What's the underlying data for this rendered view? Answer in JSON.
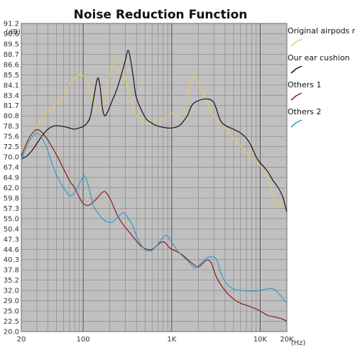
{
  "chart_data": {
    "type": "line",
    "title": "Noise Reduction Function",
    "xlabel": "",
    "ylabel": "",
    "y_unit": "(dB)",
    "x_unit": "(Hz)",
    "x_scale": "log",
    "xlim": [
      20,
      20000
    ],
    "ylim": [
      20.0,
      91.2
    ],
    "x_ticks": [
      {
        "value": 20,
        "label": "20"
      },
      {
        "value": 100,
        "label": "100"
      },
      {
        "value": 1000,
        "label": "1K"
      },
      {
        "value": 10000,
        "label": "10K"
      },
      {
        "value": 20000,
        "label": "20K"
      }
    ],
    "y_ticks": [
      "20.0",
      "22.5",
      "25.0",
      "29.0",
      "32.0",
      "35.2",
      "37.8",
      "40.3",
      "44.6",
      "47.3",
      "50.4",
      "55.0",
      "57.3",
      "59.8",
      "62.0",
      "64.9",
      "67.4",
      "70.0",
      "72.5",
      "75.6",
      "78.3",
      "80.8",
      "81.7",
      "83.4",
      "84.1",
      "85.5",
      "86.6",
      "88.7",
      "89.5",
      "90.6",
      "91.2"
    ],
    "grid": true,
    "plot_background": "#c0c0c0",
    "legend_placement": "right",
    "series": [
      {
        "name": "Original airpods max",
        "color": "#e8c95a",
        "points": [
          [
            20,
            71.5
          ],
          [
            22,
            73
          ],
          [
            25,
            75.2
          ],
          [
            30,
            78
          ],
          [
            35,
            80.5
          ],
          [
            40,
            81.2
          ],
          [
            50,
            82
          ],
          [
            60,
            83
          ],
          [
            70,
            84.2
          ],
          [
            80,
            85
          ],
          [
            90,
            85.5
          ],
          [
            100,
            85.4
          ],
          [
            110,
            84.8
          ],
          [
            130,
            82.5
          ],
          [
            150,
            81.5
          ],
          [
            170,
            82
          ],
          [
            200,
            85.5
          ],
          [
            230,
            88
          ],
          [
            260,
            87.2
          ],
          [
            300,
            85
          ],
          [
            350,
            82.5
          ],
          [
            400,
            80.8
          ],
          [
            450,
            79.8
          ],
          [
            500,
            79.2
          ],
          [
            550,
            78.9
          ],
          [
            600,
            79.2
          ],
          [
            700,
            79.8
          ],
          [
            800,
            80.2
          ],
          [
            900,
            80.5
          ],
          [
            1000,
            81
          ],
          [
            1100,
            80.8
          ],
          [
            1300,
            81
          ],
          [
            1500,
            82.5
          ],
          [
            1700,
            85.3
          ],
          [
            2000,
            84.5
          ],
          [
            2500,
            82.5
          ],
          [
            3000,
            80.5
          ],
          [
            4000,
            78
          ],
          [
            5000,
            75
          ],
          [
            7000,
            71
          ],
          [
            9000,
            68.5
          ],
          [
            11000,
            67
          ],
          [
            13000,
            63
          ],
          [
            15000,
            58.5
          ],
          [
            17000,
            57.8
          ],
          [
            18500,
            58.2
          ]
        ]
      },
      {
        "name": "Our ear cushion",
        "color": "#111111",
        "points": [
          [
            20,
            69.5
          ],
          [
            23,
            70.2
          ],
          [
            27,
            71.8
          ],
          [
            30,
            73.5
          ],
          [
            35,
            76
          ],
          [
            40,
            77.5
          ],
          [
            45,
            78.2
          ],
          [
            50,
            78.4
          ],
          [
            60,
            78.2
          ],
          [
            70,
            77.8
          ],
          [
            80,
            77.5
          ],
          [
            90,
            77.8
          ],
          [
            100,
            78.2
          ],
          [
            110,
            79
          ],
          [
            120,
            80.5
          ],
          [
            130,
            82.5
          ],
          [
            145,
            85
          ],
          [
            155,
            84
          ],
          [
            165,
            81.5
          ],
          [
            175,
            80.8
          ],
          [
            190,
            81.2
          ],
          [
            210,
            82.3
          ],
          [
            240,
            83.8
          ],
          [
            270,
            85.5
          ],
          [
            300,
            87.5
          ],
          [
            320,
            89
          ],
          [
            340,
            88
          ],
          [
            370,
            85
          ],
          [
            400,
            83
          ],
          [
            500,
            80.5
          ],
          [
            600,
            79
          ],
          [
            700,
            78.3
          ],
          [
            800,
            78
          ],
          [
            900,
            77.8
          ],
          [
            1000,
            77.8
          ],
          [
            1100,
            78
          ],
          [
            1200,
            78.3
          ],
          [
            1300,
            79
          ],
          [
            1500,
            80.8
          ],
          [
            1700,
            81.8
          ],
          [
            2000,
            82.5
          ],
          [
            2500,
            82.8
          ],
          [
            3000,
            82.2
          ],
          [
            3500,
            80
          ],
          [
            4000,
            78.5
          ],
          [
            5000,
            77.5
          ],
          [
            6000,
            76.5
          ],
          [
            7000,
            75
          ],
          [
            8000,
            72.5
          ],
          [
            9000,
            70
          ],
          [
            10000,
            68.5
          ],
          [
            12000,
            66.5
          ],
          [
            14000,
            64
          ],
          [
            16000,
            62
          ],
          [
            18000,
            60
          ],
          [
            20000,
            56.5
          ]
        ]
      },
      {
        "name": "Others 1",
        "color": "#8b1a1a",
        "points": [
          [
            20,
            70
          ],
          [
            22,
            72.5
          ],
          [
            25,
            75.5
          ],
          [
            28,
            77
          ],
          [
            30,
            77.4
          ],
          [
            33,
            77
          ],
          [
            36,
            76
          ],
          [
            40,
            74.5
          ],
          [
            50,
            70.5
          ],
          [
            60,
            67
          ],
          [
            70,
            64
          ],
          [
            80,
            62
          ],
          [
            90,
            60
          ],
          [
            100,
            58.5
          ],
          [
            110,
            58
          ],
          [
            120,
            58.2
          ],
          [
            140,
            59.5
          ],
          [
            160,
            60.8
          ],
          [
            175,
            61.2
          ],
          [
            190,
            60.5
          ],
          [
            210,
            58.8
          ],
          [
            240,
            56
          ],
          [
            280,
            52.5
          ],
          [
            330,
            49.5
          ],
          [
            400,
            46.8
          ],
          [
            450,
            45.5
          ],
          [
            500,
            44.8
          ],
          [
            550,
            44.5
          ],
          [
            600,
            44.6
          ],
          [
            700,
            45.8
          ],
          [
            750,
            46.4
          ],
          [
            800,
            46.6
          ],
          [
            850,
            46.3
          ],
          [
            950,
            45
          ],
          [
            1100,
            44
          ],
          [
            1300,
            42.5
          ],
          [
            1500,
            40.5
          ],
          [
            1800,
            39
          ],
          [
            2000,
            38.5
          ],
          [
            2200,
            39.2
          ],
          [
            2500,
            40.2
          ],
          [
            2800,
            39.5
          ],
          [
            3200,
            36
          ],
          [
            4000,
            32
          ],
          [
            5000,
            29.5
          ],
          [
            6000,
            28
          ],
          [
            8000,
            26.5
          ],
          [
            10000,
            25
          ],
          [
            12000,
            24
          ],
          [
            15000,
            23.5
          ],
          [
            18000,
            23
          ],
          [
            20000,
            22.5
          ]
        ]
      },
      {
        "name": "Others 2",
        "color": "#3399cc",
        "points": [
          [
            20,
            69
          ],
          [
            22,
            71.5
          ],
          [
            25,
            74.5
          ],
          [
            28,
            76
          ],
          [
            30,
            76.5
          ],
          [
            33,
            75.8
          ],
          [
            36,
            74
          ],
          [
            40,
            71.5
          ],
          [
            45,
            68
          ],
          [
            50,
            65.5
          ],
          [
            55,
            63.5
          ],
          [
            60,
            62
          ],
          [
            70,
            60.3
          ],
          [
            80,
            61
          ],
          [
            90,
            63
          ],
          [
            100,
            65
          ],
          [
            105,
            65.2
          ],
          [
            110,
            64
          ],
          [
            120,
            61
          ],
          [
            130,
            58
          ],
          [
            150,
            56
          ],
          [
            170,
            54.5
          ],
          [
            190,
            53.5
          ],
          [
            210,
            53.3
          ],
          [
            230,
            54.5
          ],
          [
            260,
            55.8
          ],
          [
            280,
            56.3
          ],
          [
            300,
            56
          ],
          [
            330,
            54.5
          ],
          [
            370,
            51
          ],
          [
            420,
            47
          ],
          [
            500,
            44.5
          ],
          [
            550,
            44
          ],
          [
            600,
            44.2
          ],
          [
            700,
            46
          ],
          [
            800,
            47.8
          ],
          [
            850,
            48.4
          ],
          [
            900,
            48.2
          ],
          [
            1000,
            46.5
          ],
          [
            1200,
            43.5
          ],
          [
            1400,
            41
          ],
          [
            1600,
            39.5
          ],
          [
            1800,
            38.3
          ],
          [
            2000,
            38.8
          ],
          [
            2400,
            40.6
          ],
          [
            2800,
            41.5
          ],
          [
            3200,
            40.5
          ],
          [
            3600,
            37
          ],
          [
            4200,
            34
          ],
          [
            5000,
            32.5
          ],
          [
            6000,
            32
          ],
          [
            8000,
            31.8
          ],
          [
            10000,
            32
          ],
          [
            12000,
            32.5
          ],
          [
            13500,
            32.6
          ],
          [
            15000,
            32
          ],
          [
            17000,
            30.5
          ],
          [
            20000,
            28
          ]
        ]
      }
    ]
  }
}
